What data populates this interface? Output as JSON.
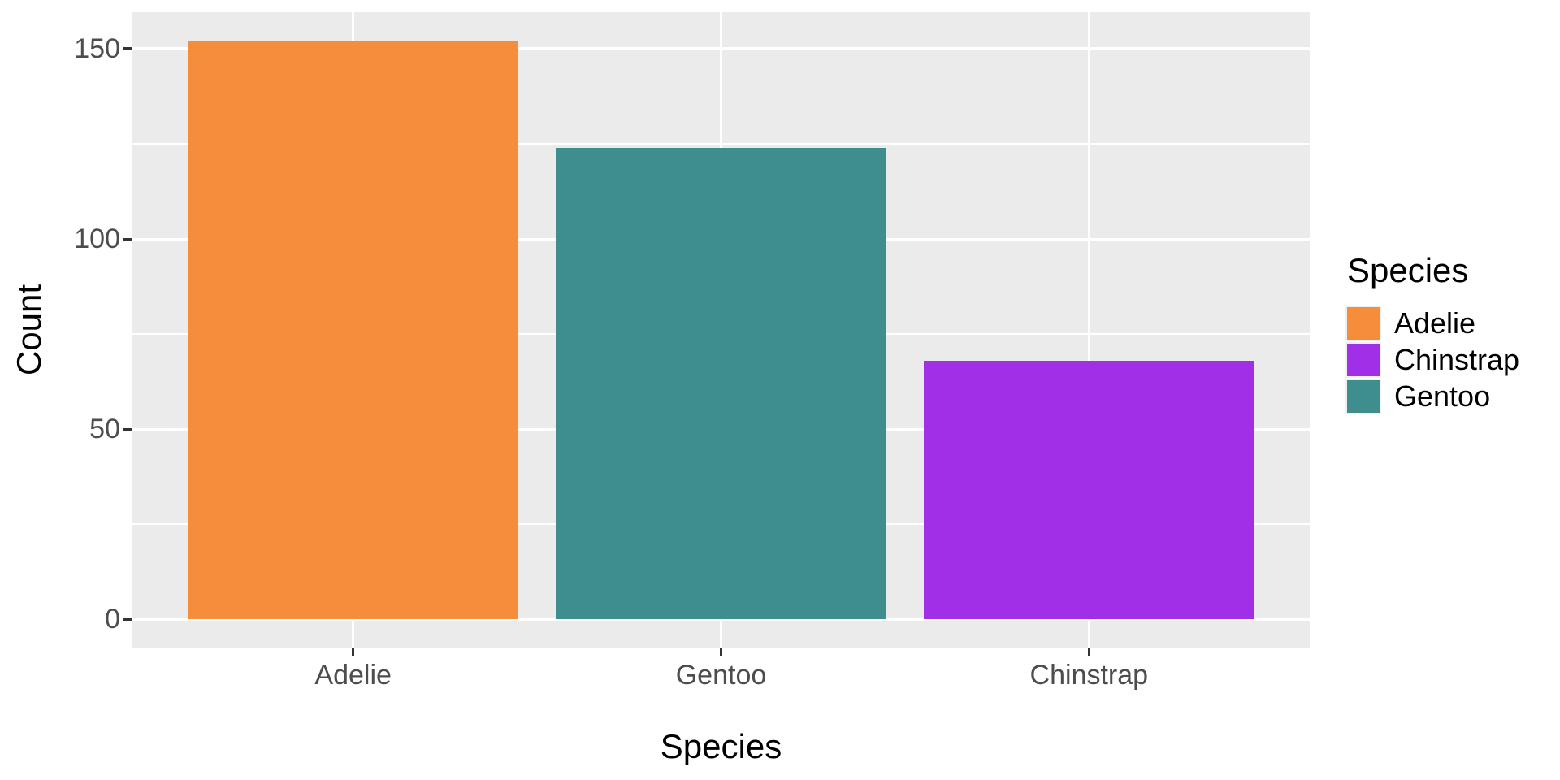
{
  "chart_data": {
    "type": "bar",
    "title": "",
    "xlabel": "Species",
    "ylabel": "Count",
    "categories": [
      "Adelie",
      "Gentoo",
      "Chinstrap"
    ],
    "values": [
      152,
      124,
      68
    ],
    "bar_colors": [
      "#F68D3B",
      "#3D8E8C",
      "#A22FE8"
    ],
    "ylim": [
      0,
      160
    ],
    "y_major_ticks": [
      0,
      50,
      100,
      150
    ],
    "y_minor_gridlines": [
      25,
      75,
      125
    ],
    "grid": true,
    "gridline_color": "#FFFFFF",
    "panel_background": "#EBEBEB",
    "legend_position": "right"
  },
  "legend": {
    "title": "Species",
    "items": [
      {
        "label": "Adelie",
        "color": "#F68D3B"
      },
      {
        "label": "Chinstrap",
        "color": "#A22FE8"
      },
      {
        "label": "Gentoo",
        "color": "#3D8E8C"
      }
    ]
  },
  "style": {
    "tick_label_color": "#4D4D4D",
    "tick_mark_color": "#333333",
    "axis_title_color": "#000000",
    "figure_background": "#FFFFFF"
  }
}
